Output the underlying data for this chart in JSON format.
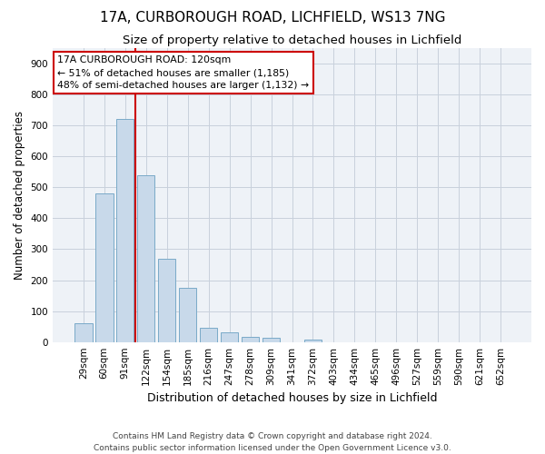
{
  "title1": "17A, CURBOROUGH ROAD, LICHFIELD, WS13 7NG",
  "title2": "Size of property relative to detached houses in Lichfield",
  "xlabel": "Distribution of detached houses by size in Lichfield",
  "ylabel": "Number of detached properties",
  "footnote1": "Contains HM Land Registry data © Crown copyright and database right 2024.",
  "footnote2": "Contains public sector information licensed under the Open Government Licence v3.0.",
  "categories": [
    "29sqm",
    "60sqm",
    "91sqm",
    "122sqm",
    "154sqm",
    "185sqm",
    "216sqm",
    "247sqm",
    "278sqm",
    "309sqm",
    "341sqm",
    "372sqm",
    "403sqm",
    "434sqm",
    "465sqm",
    "496sqm",
    "527sqm",
    "559sqm",
    "590sqm",
    "621sqm",
    "652sqm"
  ],
  "values": [
    60,
    480,
    720,
    540,
    270,
    175,
    47,
    32,
    17,
    14,
    0,
    8,
    0,
    0,
    0,
    0,
    0,
    0,
    0,
    0,
    0
  ],
  "bar_color": "#c8d9ea",
  "bar_edge_color": "#7aaac8",
  "red_line_x": 2.5,
  "annotation_line1": "17A CURBOROUGH ROAD: 120sqm",
  "annotation_line2": "← 51% of detached houses are smaller (1,185)",
  "annotation_line3": "48% of semi-detached houses are larger (1,132) →",
  "ylim": [
    0,
    950
  ],
  "yticks": [
    0,
    100,
    200,
    300,
    400,
    500,
    600,
    700,
    800,
    900
  ],
  "background_color": "#eef2f7",
  "grid_color": "#c8d0dc",
  "title1_fontsize": 11,
  "title2_fontsize": 9.5,
  "xlabel_fontsize": 9,
  "ylabel_fontsize": 8.5,
  "annotation_fontsize": 7.8,
  "tick_fontsize": 7.5,
  "footnote_fontsize": 6.5
}
